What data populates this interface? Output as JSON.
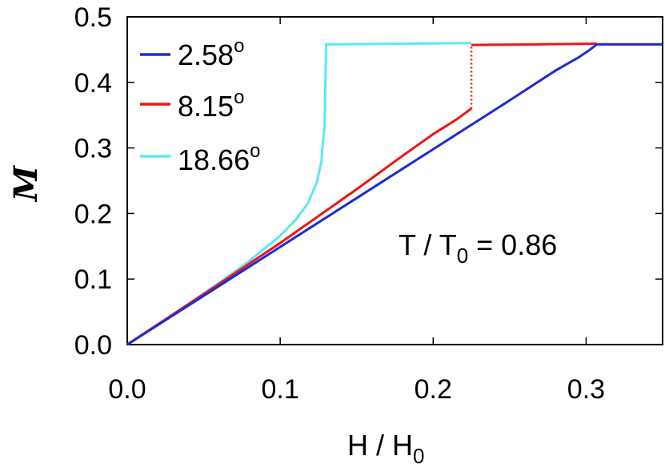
{
  "chart_data": {
    "type": "line",
    "title": "",
    "xlabel": "H / H",
    "xlabel_sub": "0",
    "ylabel": "M",
    "xlim": [
      0,
      0.35
    ],
    "ylim": [
      0,
      0.5
    ],
    "xticks": [
      0.0,
      0.1,
      0.2,
      0.3
    ],
    "yticks": [
      0.0,
      0.1,
      0.2,
      0.3,
      0.4,
      0.5
    ],
    "xtick_labels": [
      "0.0",
      "0.1",
      "0.2",
      "0.3"
    ],
    "ytick_labels": [
      "0.0",
      "0.1",
      "0.2",
      "0.3",
      "0.4",
      "0.5"
    ],
    "grid": false,
    "legend_position": "top-left",
    "annotation": {
      "text": "T / T",
      "sub": "0",
      "rest": " = 0.86"
    },
    "series": [
      {
        "name": "2.58",
        "superscript": "o",
        "color": "#1e2ad6",
        "points": [
          [
            0.0,
            0.0
          ],
          [
            0.05,
            0.0745
          ],
          [
            0.1,
            0.149
          ],
          [
            0.15,
            0.2235
          ],
          [
            0.2,
            0.298
          ],
          [
            0.25,
            0.3725
          ],
          [
            0.28,
            0.418
          ],
          [
            0.295,
            0.438
          ],
          [
            0.302,
            0.449
          ],
          [
            0.307,
            0.458
          ],
          [
            0.35,
            0.458
          ]
        ]
      },
      {
        "name": "8.15",
        "superscript": "o",
        "color": "#f01414",
        "points": [
          [
            0.0,
            0.0
          ],
          [
            0.05,
            0.077
          ],
          [
            0.1,
            0.155
          ],
          [
            0.15,
            0.237
          ],
          [
            0.18,
            0.288
          ],
          [
            0.2,
            0.321
          ],
          [
            0.215,
            0.343
          ],
          [
            0.225,
            0.36
          ],
          [
            0.225,
            0.457
          ],
          [
            0.307,
            0.459
          ]
        ],
        "dotted_jump": [
          [
            0.225,
            0.36
          ],
          [
            0.225,
            0.457
          ]
        ]
      },
      {
        "name": "18.66",
        "superscript": "o",
        "color": "#5ce8f0",
        "points": [
          [
            0.0,
            0.0
          ],
          [
            0.03,
            0.046
          ],
          [
            0.06,
            0.094
          ],
          [
            0.08,
            0.128
          ],
          [
            0.1,
            0.166
          ],
          [
            0.11,
            0.19
          ],
          [
            0.118,
            0.215
          ],
          [
            0.124,
            0.248
          ],
          [
            0.127,
            0.28
          ],
          [
            0.128,
            0.31
          ],
          [
            0.129,
            0.33
          ],
          [
            0.13,
            0.458
          ],
          [
            0.225,
            0.46
          ]
        ]
      }
    ]
  }
}
